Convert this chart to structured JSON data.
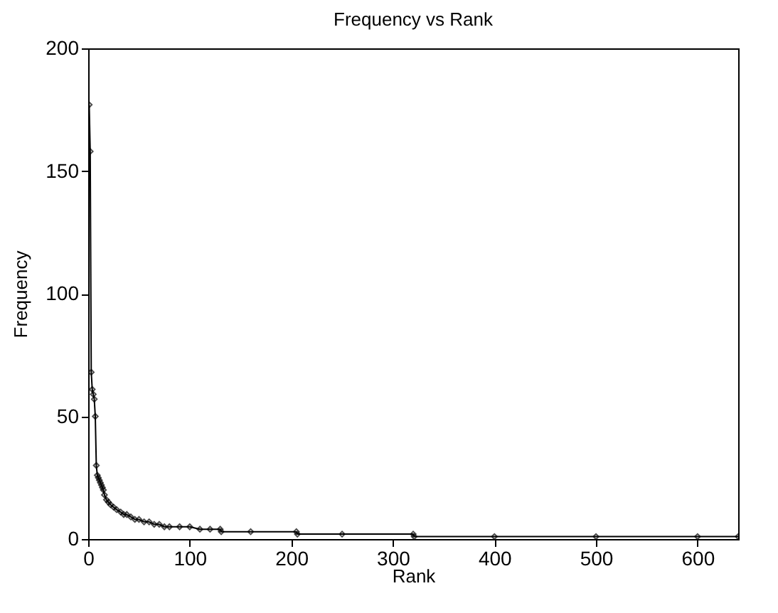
{
  "chart_data": {
    "type": "line",
    "title": "Frequency vs Rank",
    "xlabel": "Rank",
    "ylabel": "Frequency",
    "x": [
      1,
      2,
      3,
      4,
      5,
      6,
      7,
      8,
      9,
      10,
      11,
      12,
      13,
      14,
      15,
      16,
      18,
      20,
      22,
      25,
      28,
      32,
      35,
      38,
      42,
      46,
      50,
      55,
      60,
      65,
      70,
      75,
      80,
      90,
      100,
      110,
      120,
      130,
      131,
      160,
      205,
      206,
      250,
      320,
      321,
      400,
      500,
      600,
      640
    ],
    "values": [
      177,
      158,
      68,
      61,
      59,
      57,
      50,
      30,
      26,
      25,
      24,
      23,
      22,
      21,
      20,
      18,
      16,
      15,
      14,
      13,
      12,
      11,
      10,
      10,
      9,
      8,
      8,
      7,
      7,
      6,
      6,
      5,
      5,
      5,
      5,
      4,
      4,
      4,
      3,
      3,
      3,
      2,
      2,
      2,
      1,
      1,
      1,
      1,
      1
    ],
    "color": "#000000",
    "marker": "diamond",
    "line_style": "solid",
    "grid": false,
    "xlim": [
      0,
      640
    ],
    "xticks": [
      0,
      100,
      200,
      300,
      400,
      500,
      600
    ],
    "ylim": [
      0,
      200
    ],
    "yticks": [
      0,
      50,
      100,
      150,
      200
    ]
  }
}
